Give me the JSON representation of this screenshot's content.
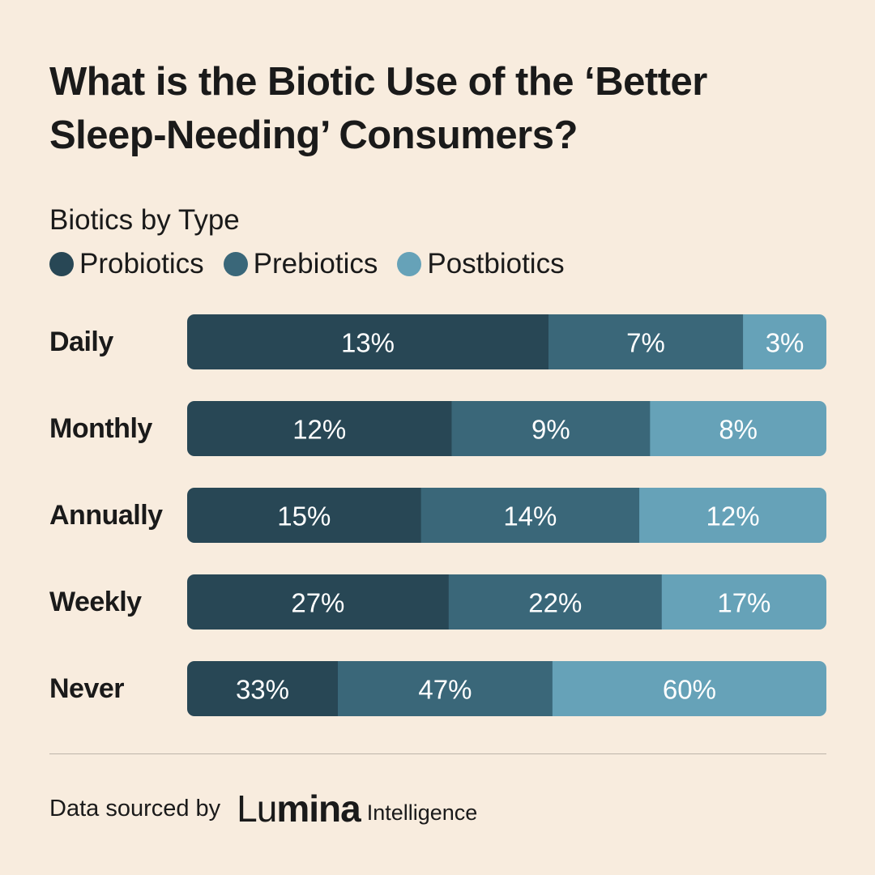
{
  "title": "What is the Biotic Use of the ‘Better\nSleep-Needing’  Consumers?",
  "subtitle": "Biotics by Type",
  "footer": {
    "source_label": "Data sourced by",
    "brand_light": "Lu",
    "brand_bold": "mina",
    "brand_sub": "Intelligence"
  },
  "colors": {
    "background": "#f8ecde",
    "Probiotics": "#284755",
    "Prebiotics": "#3a6779",
    "Postbiotics": "#66a2b8"
  },
  "chart_data": {
    "type": "bar",
    "orientation": "horizontal",
    "stacked": true,
    "categories": [
      "Daily",
      "Monthly",
      "Annually",
      "Weekly",
      "Never"
    ],
    "series": [
      {
        "name": "Probiotics",
        "values": [
          13,
          12,
          15,
          27,
          33
        ],
        "labels": [
          "13%",
          "12%",
          "15%",
          "27%",
          "33%"
        ]
      },
      {
        "name": "Prebiotics",
        "values": [
          7,
          9,
          14,
          22,
          47
        ],
        "labels": [
          "7%",
          "9%",
          "14%",
          "22%",
          "47%"
        ]
      },
      {
        "name": "Postbiotics",
        "values": [
          3,
          8,
          12,
          17,
          60
        ],
        "labels": [
          "3%",
          "8%",
          "12%",
          "17%",
          "60%"
        ]
      }
    ],
    "legend_position": "top-left",
    "axes_visible": false,
    "grid": false
  }
}
